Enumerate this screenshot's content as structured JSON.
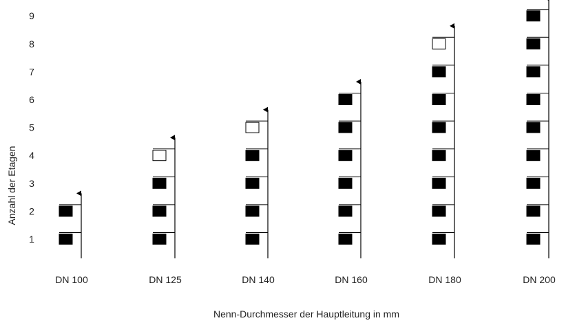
{
  "y_axis": {
    "label": "Anzahl der Etagen",
    "ticks": [
      "1",
      "2",
      "3",
      "4",
      "5",
      "6",
      "7",
      "8",
      "9"
    ]
  },
  "x_axis": {
    "label": "Nenn-Durchmesser der Hauptleitung in mm"
  },
  "colors": {
    "line": "#000000",
    "filled_box": "#000000",
    "empty_box": "#ffffff"
  },
  "columns": [
    {
      "label": "DN 100",
      "filled_floors": 2,
      "empty_floors": 0
    },
    {
      "label": "DN 125",
      "filled_floors": 3,
      "empty_floors": 1
    },
    {
      "label": "DN 140",
      "filled_floors": 4,
      "empty_floors": 1
    },
    {
      "label": "DN 160",
      "filled_floors": 6,
      "empty_floors": 0
    },
    {
      "label": "DN 180",
      "filled_floors": 7,
      "empty_floors": 1
    },
    {
      "label": "DN 200",
      "filled_floors": 9,
      "empty_floors": 0
    }
  ]
}
